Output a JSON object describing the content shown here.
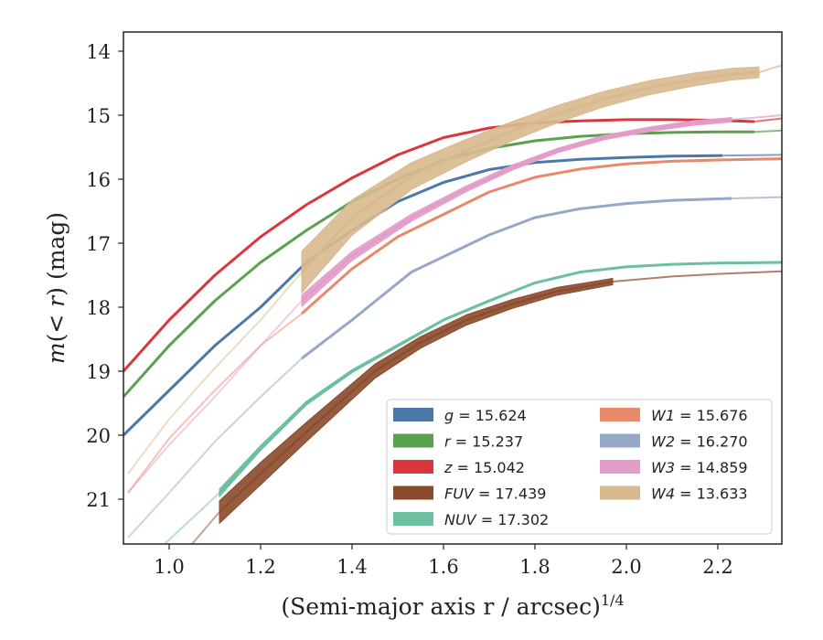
{
  "chart_data": {
    "type": "line",
    "xlabel": "(Semi-major axis r / arcsec)",
    "xlabel_exponent": "1/4",
    "ylabel": "m(< r) (mag)",
    "xlim": [
      0.9,
      2.34
    ],
    "ylim": [
      21.7,
      13.7
    ],
    "y_inverted": true,
    "grid": false,
    "legend_placement": "lower-right",
    "x_ticks": [
      "1.0",
      "1.2",
      "1.4",
      "1.6",
      "1.8",
      "2.0",
      "2.2"
    ],
    "y_ticks": [
      "14",
      "15",
      "16",
      "17",
      "18",
      "19",
      "20",
      "21"
    ],
    "series": [
      {
        "name": "g",
        "label_value": "15.624",
        "color": "#4c78a8",
        "x": [
          0.9,
          1.0,
          1.1,
          1.2,
          1.3,
          1.4,
          1.5,
          1.6,
          1.7,
          1.8,
          1.9,
          2.0,
          2.1,
          2.21
        ],
        "y": [
          20.0,
          19.3,
          18.6,
          18.0,
          17.3,
          16.8,
          16.35,
          16.05,
          15.85,
          15.74,
          15.69,
          15.66,
          15.64,
          15.63
        ],
        "ext_x": [
          2.21,
          2.34
        ],
        "ext_y": [
          15.63,
          15.62
        ],
        "width": 3
      },
      {
        "name": "r",
        "label_value": "15.237",
        "color": "#59a14f",
        "x": [
          0.9,
          1.0,
          1.1,
          1.2,
          1.3,
          1.4,
          1.5,
          1.6,
          1.7,
          1.8,
          1.9,
          2.0,
          2.1,
          2.2,
          2.28
        ],
        "y": [
          19.4,
          18.6,
          17.9,
          17.3,
          16.8,
          16.35,
          16.0,
          15.7,
          15.52,
          15.4,
          15.33,
          15.29,
          15.27,
          15.26,
          15.26
        ],
        "ext_x": [
          2.28,
          2.34
        ],
        "ext_y": [
          15.26,
          15.24
        ],
        "width": 3
      },
      {
        "name": "z",
        "label_value": "15.042",
        "color": "#d9363e",
        "x": [
          0.9,
          1.0,
          1.1,
          1.2,
          1.3,
          1.4,
          1.5,
          1.6,
          1.7,
          1.8,
          1.9,
          2.0,
          2.1,
          2.2,
          2.28
        ],
        "y": [
          19.0,
          18.2,
          17.5,
          16.9,
          16.4,
          15.98,
          15.62,
          15.35,
          15.2,
          15.12,
          15.09,
          15.07,
          15.07,
          15.08,
          15.1
        ],
        "ext_x": [
          2.28,
          2.34
        ],
        "ext_y": [
          15.1,
          15.05
        ],
        "width": 3
      },
      {
        "name": "FUV",
        "label_value": "17.439",
        "color": "#8b4a2b",
        "x": [
          1.11,
          1.2,
          1.3,
          1.45,
          1.55,
          1.65,
          1.75,
          1.85,
          1.97
        ],
        "y": [
          21.2,
          20.6,
          19.95,
          19.0,
          18.55,
          18.2,
          17.95,
          17.75,
          17.6
        ],
        "ext_x": [
          1.97,
          2.1,
          2.2,
          2.34
        ],
        "ext_y": [
          17.6,
          17.52,
          17.48,
          17.44
        ],
        "pre_x": [
          1.05,
          1.11
        ],
        "pre_y": [
          21.7,
          21.2
        ],
        "band": [
          0.35,
          0.35,
          0.3,
          0.22,
          0.18,
          0.16,
          0.14,
          0.12,
          0.1
        ],
        "width": 2
      },
      {
        "name": "NUV",
        "label_value": "17.302",
        "color": "#6cbf9f",
        "x": [
          1.11,
          1.2,
          1.3,
          1.4,
          1.5,
          1.6,
          1.7,
          1.8,
          1.9,
          2.0,
          2.1,
          2.2,
          2.34
        ],
        "y": [
          20.9,
          20.2,
          19.5,
          19.0,
          18.6,
          18.2,
          17.9,
          17.62,
          17.45,
          17.37,
          17.33,
          17.31,
          17.3
        ],
        "pre_x": [
          0.99,
          1.11
        ],
        "pre_y": [
          21.7,
          20.9
        ],
        "band": [
          0.12,
          0.08,
          0.06,
          0.05,
          0.04,
          0.03,
          0.03,
          0.02,
          0.02,
          0.02,
          0.02,
          0.02,
          0.02
        ],
        "width": 3
      },
      {
        "name": "W1",
        "label_value": "15.676",
        "color": "#e8896a",
        "x": [
          1.29,
          1.4,
          1.5,
          1.6,
          1.7,
          1.8,
          1.9,
          2.0,
          2.1,
          2.2,
          2.34
        ],
        "y": [
          18.1,
          17.4,
          16.9,
          16.55,
          16.2,
          15.97,
          15.84,
          15.76,
          15.72,
          15.7,
          15.68
        ],
        "pre_x": [
          0.91,
          1.0,
          1.1,
          1.2,
          1.29
        ],
        "pre_y": [
          20.9,
          20.05,
          19.3,
          18.6,
          18.1
        ],
        "width": 3
      },
      {
        "name": "W2",
        "label_value": "16.270",
        "color": "#96a8c8",
        "x": [
          1.29,
          1.4,
          1.53,
          1.7,
          1.8,
          1.9,
          2.0,
          2.1,
          2.23
        ],
        "y": [
          18.8,
          18.2,
          17.45,
          16.87,
          16.6,
          16.46,
          16.38,
          16.33,
          16.3
        ],
        "ext_x": [
          2.23,
          2.34
        ],
        "ext_y": [
          16.3,
          16.28
        ],
        "pre_x": [
          0.91,
          1.0,
          1.1,
          1.2,
          1.29
        ],
        "pre_y": [
          21.6,
          20.9,
          20.1,
          19.4,
          18.8
        ],
        "width": 3
      },
      {
        "name": "W3",
        "label_value": "14.859",
        "color": "#e29cc7",
        "x": [
          1.29,
          1.4,
          1.53,
          1.65,
          1.75,
          1.85,
          1.95,
          2.05,
          2.15,
          2.23
        ],
        "y": [
          17.9,
          17.2,
          16.6,
          16.15,
          15.82,
          15.55,
          15.35,
          15.22,
          15.12,
          15.07
        ],
        "ext_x": [
          2.23,
          2.34
        ],
        "ext_y": [
          15.07,
          15.0
        ],
        "pre_x": [
          0.91,
          1.0,
          1.1,
          1.2,
          1.29
        ],
        "pre_y": [
          20.9,
          20.15,
          19.4,
          18.6,
          17.9
        ],
        "band": [
          0.18,
          0.14,
          0.11,
          0.09,
          0.08,
          0.07,
          0.07,
          0.07,
          0.07,
          0.07
        ],
        "width": 3
      },
      {
        "name": "W4",
        "label_value": "13.633",
        "color": "#d7b98e",
        "x": [
          1.29,
          1.4,
          1.53,
          1.65,
          1.75,
          1.85,
          1.95,
          2.05,
          2.15,
          2.23,
          2.29
        ],
        "y": [
          17.45,
          16.6,
          15.95,
          15.55,
          15.25,
          14.98,
          14.75,
          14.57,
          14.44,
          14.36,
          14.33
        ],
        "ext_x": [
          2.29,
          2.34
        ],
        "ext_y": [
          14.33,
          14.22
        ],
        "pre_x": [
          0.91,
          1.0,
          1.1,
          1.2,
          1.29
        ],
        "pre_y": [
          20.6,
          19.75,
          18.95,
          18.2,
          17.45
        ],
        "band": [
          0.65,
          0.55,
          0.42,
          0.35,
          0.3,
          0.27,
          0.24,
          0.22,
          0.2,
          0.18,
          0.17
        ],
        "width": 3
      }
    ]
  }
}
